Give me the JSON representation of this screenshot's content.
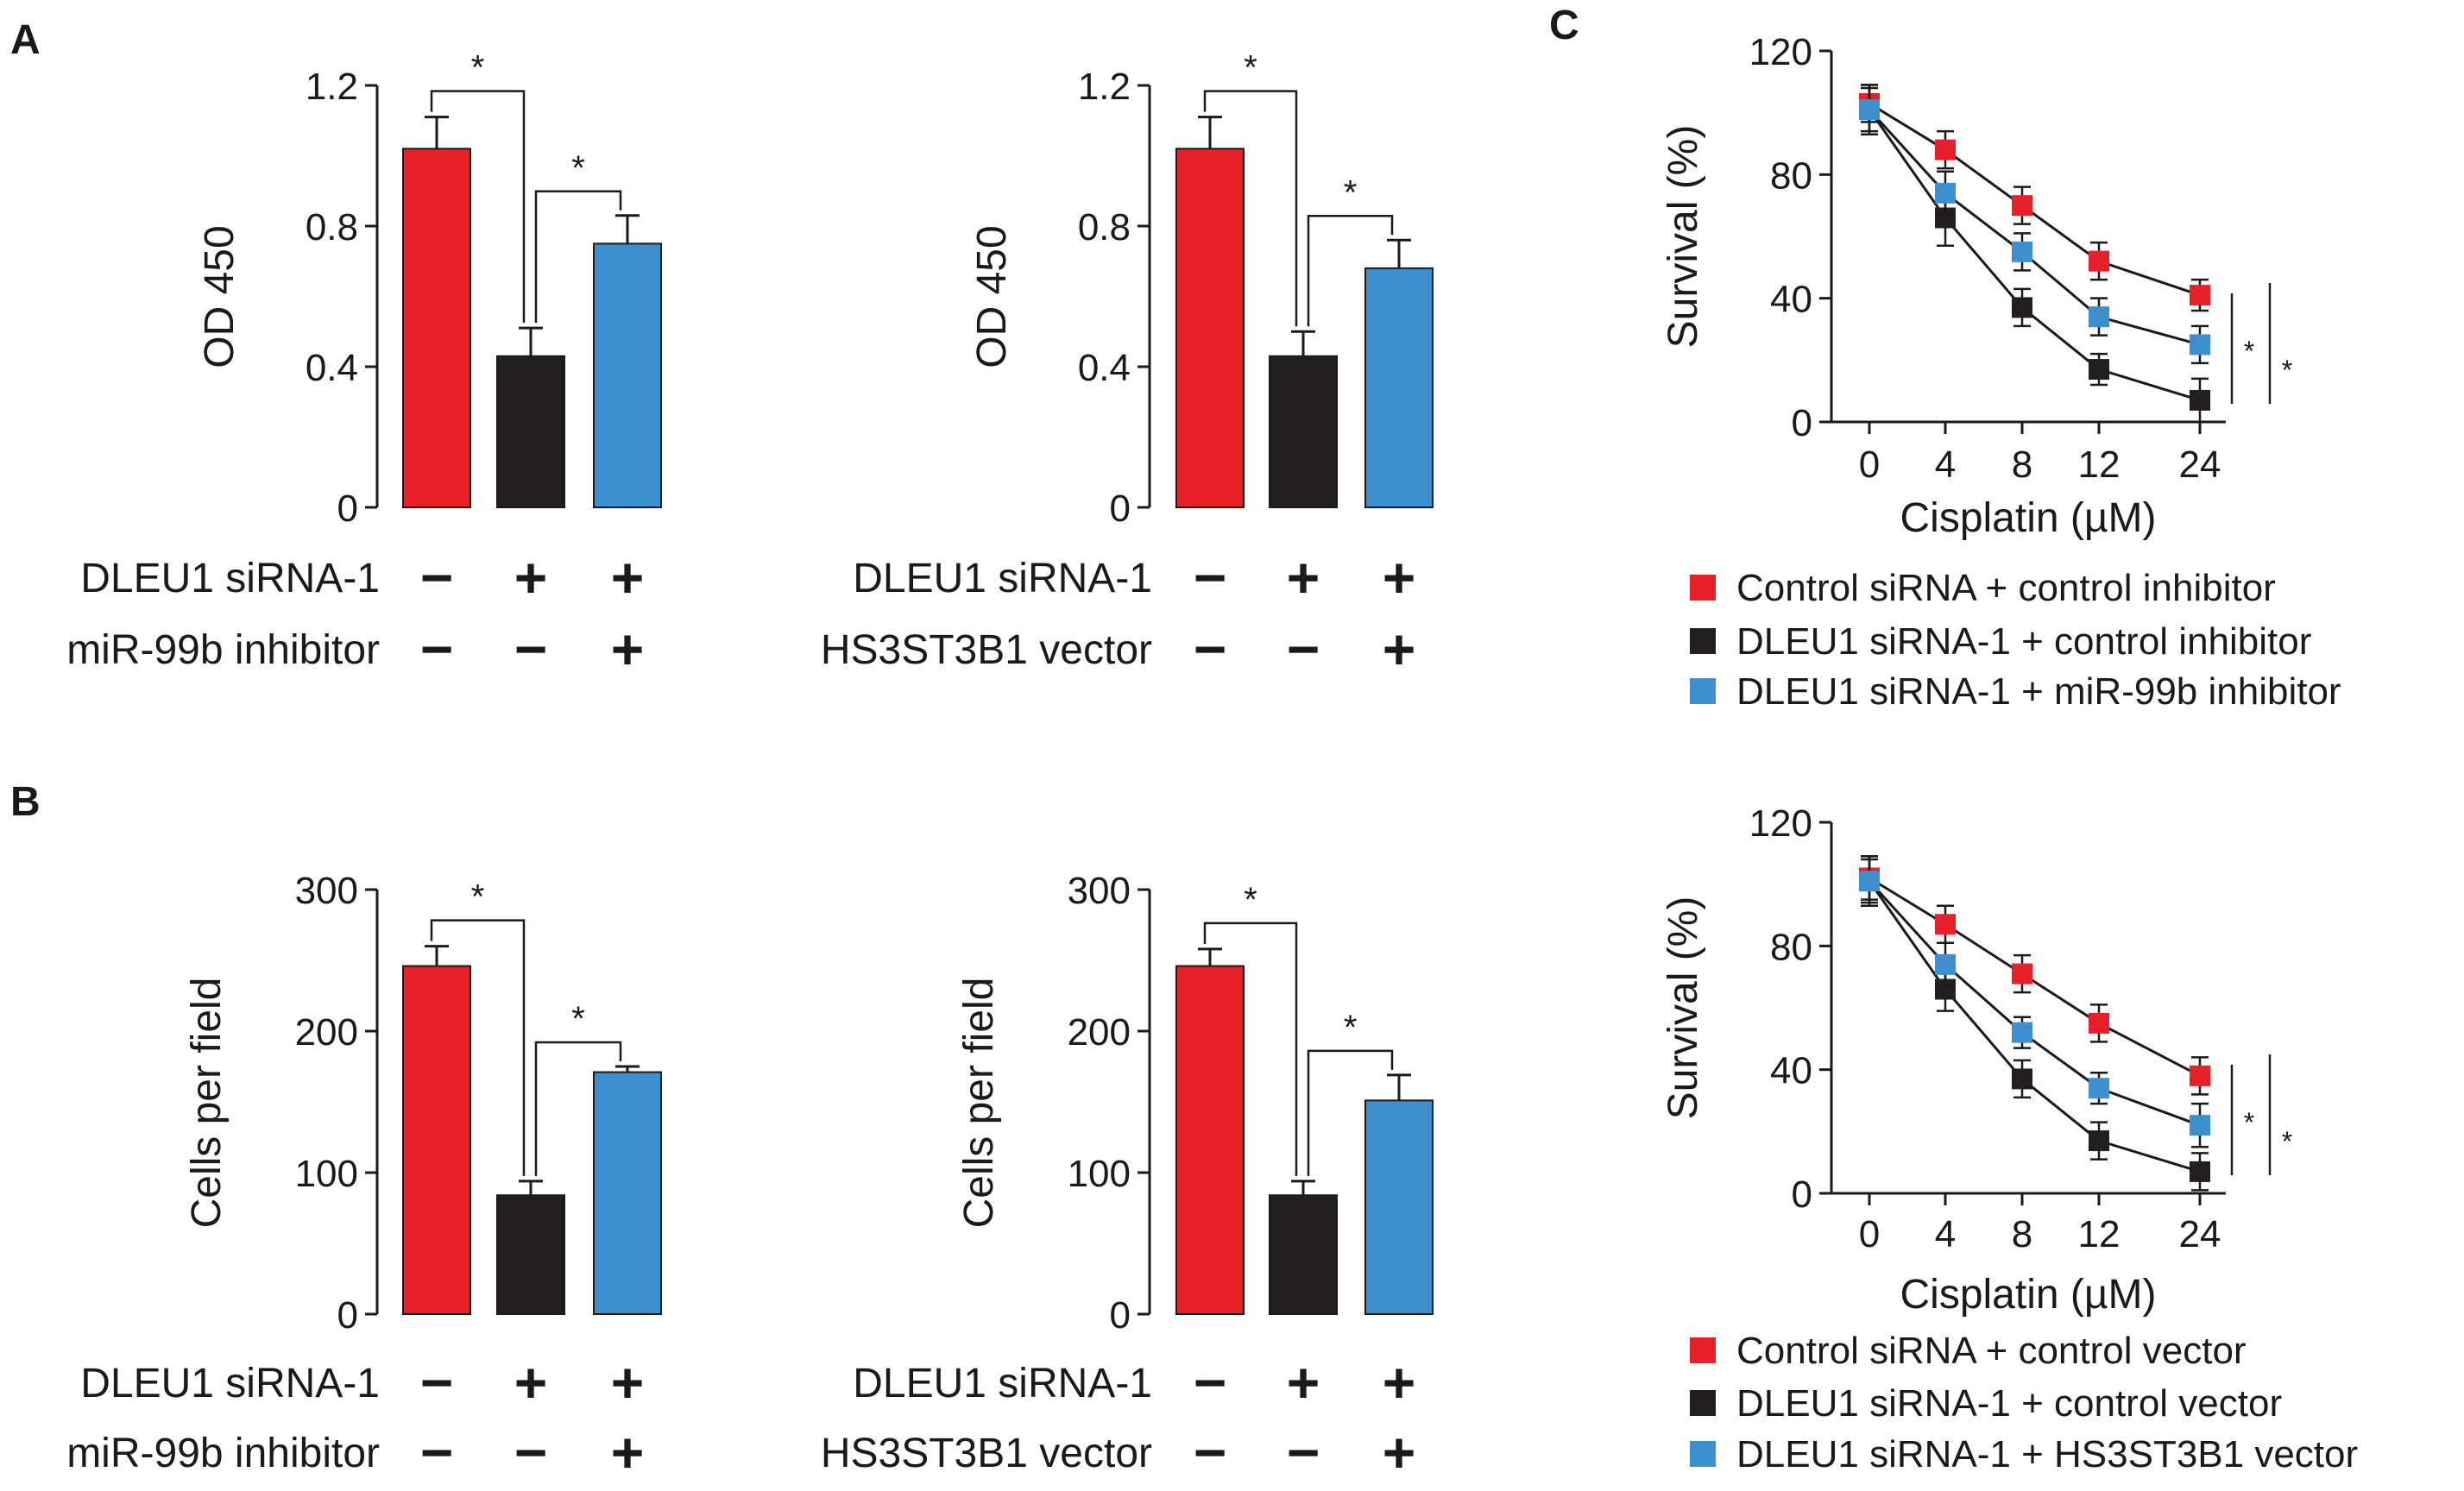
{
  "panel_labels": {
    "a": "A",
    "b": "B",
    "c": "C"
  },
  "colors": {
    "red": "#e8202a",
    "black": "#231f20",
    "blue": "#3d8fce",
    "axis": "#1a1a1a"
  },
  "row_labels": {
    "siRNA": "DLEU1 siRNA-1",
    "inhibitor": "miR-99b inhibitor",
    "vector": "HS3ST3B1 vector"
  },
  "row_signs": {
    "siRNA": [
      "−",
      "+",
      "+"
    ],
    "second": [
      "−",
      "−",
      "+"
    ]
  },
  "chart_data": [
    {
      "id": "A1",
      "type": "bar",
      "panel": "A",
      "ylabel": "OD 450",
      "ylim": [
        0,
        1.2
      ],
      "yticks": [
        "0",
        "0.4",
        "0.8",
        "1.2"
      ],
      "categories": [
        "Control siRNA + control inhibitor",
        "DLEU1 siRNA-1 + control inhibitor",
        "DLEU1 siRNA-1 + miR-99b inhibitor"
      ],
      "values": [
        1.02,
        0.43,
        0.75
      ],
      "errors": [
        0.09,
        0.08,
        0.08
      ],
      "significance": [
        {
          "between": [
            0,
            1
          ],
          "label": "*"
        },
        {
          "between": [
            1,
            2
          ],
          "label": "*"
        }
      ],
      "rows": [
        "siRNA",
        "inhibitor"
      ]
    },
    {
      "id": "A2",
      "type": "bar",
      "panel": "A",
      "ylabel": "OD 450",
      "ylim": [
        0,
        1.2
      ],
      "yticks": [
        "0",
        "0.4",
        "0.8",
        "1.2"
      ],
      "categories": [
        "Control siRNA + control vector",
        "DLEU1 siRNA-1 + control vector",
        "DLEU1 siRNA-1 + HS3ST3B1 vector"
      ],
      "values": [
        1.02,
        0.43,
        0.68
      ],
      "errors": [
        0.09,
        0.07,
        0.08
      ],
      "significance": [
        {
          "between": [
            0,
            1
          ],
          "label": "*"
        },
        {
          "between": [
            1,
            2
          ],
          "label": "*"
        }
      ],
      "rows": [
        "siRNA",
        "vector"
      ]
    },
    {
      "id": "B1",
      "type": "bar",
      "panel": "B",
      "ylabel": "Cells per field",
      "ylim": [
        0,
        300
      ],
      "yticks": [
        "0",
        "100",
        "200",
        "300"
      ],
      "categories": [
        "Control siRNA + control inhibitor",
        "DLEU1 siRNA-1 + control inhibitor",
        "DLEU1 siRNA-1 + miR-99b inhibitor"
      ],
      "values": [
        246,
        84,
        171
      ],
      "errors": [
        14,
        10,
        4
      ],
      "significance": [
        {
          "between": [
            0,
            1
          ],
          "label": "*"
        },
        {
          "between": [
            1,
            2
          ],
          "label": "*"
        }
      ],
      "rows": [
        "siRNA",
        "inhibitor"
      ]
    },
    {
      "id": "B2",
      "type": "bar",
      "panel": "B",
      "ylabel": "Cells per field",
      "ylim": [
        0,
        300
      ],
      "yticks": [
        "0",
        "100",
        "200",
        "300"
      ],
      "categories": [
        "Control siRNA + control vector",
        "DLEU1 siRNA-1 + control vector",
        "DLEU1 siRNA-1 + HS3ST3B1 vector"
      ],
      "values": [
        246,
        84,
        151
      ],
      "errors": [
        12,
        10,
        18
      ],
      "significance": [
        {
          "between": [
            0,
            1
          ],
          "label": "*"
        },
        {
          "between": [
            1,
            2
          ],
          "label": "*"
        }
      ],
      "rows": [
        "siRNA",
        "vector"
      ]
    },
    {
      "id": "C1",
      "type": "line",
      "panel": "C",
      "xlabel": "Cisplatin (µM)",
      "ylabel": "Survival (%)",
      "x": [
        "0",
        "4",
        "8",
        "12",
        "24"
      ],
      "ylim": [
        0,
        120
      ],
      "yticks": [
        "0",
        "40",
        "80",
        "120"
      ],
      "series": [
        {
          "name": "Control siRNA + control inhibitor",
          "color": "red",
          "values": [
            103,
            88,
            70,
            52,
            41
          ],
          "errors": [
            6,
            6,
            6,
            6,
            5
          ]
        },
        {
          "name": "DLEU1 siRNA-1 + control inhibitor",
          "color": "black",
          "values": [
            101,
            66,
            37,
            17,
            7
          ],
          "errors": [
            8,
            9,
            6,
            5,
            7
          ]
        },
        {
          "name": "DLEU1 siRNA-1 + miR-99b inhibitor",
          "color": "blue",
          "values": [
            101,
            74,
            55,
            34,
            25
          ],
          "errors": [
            7,
            7,
            6,
            6,
            6
          ]
        }
      ],
      "significance": [
        "*",
        "*"
      ]
    },
    {
      "id": "C2",
      "type": "line",
      "panel": "C",
      "xlabel": "Cisplatin (µM)",
      "ylabel": "Survival (%)",
      "x": [
        "0",
        "4",
        "8",
        "12",
        "24"
      ],
      "ylim": [
        0,
        120
      ],
      "yticks": [
        "0",
        "40",
        "80",
        "120"
      ],
      "series": [
        {
          "name": "Control siRNA + control vector",
          "color": "red",
          "values": [
            102,
            87,
            71,
            55,
            38
          ],
          "errors": [
            7,
            6,
            6,
            6,
            6
          ]
        },
        {
          "name": "DLEU1 siRNA-1 + control vector",
          "color": "black",
          "values": [
            101,
            66,
            37,
            17,
            7
          ],
          "errors": [
            8,
            7,
            6,
            6,
            6
          ]
        },
        {
          "name": "DLEU1 siRNA-1 + HS3ST3B1 vector",
          "color": "blue",
          "values": [
            101,
            74,
            52,
            34,
            22
          ],
          "errors": [
            7,
            7,
            5,
            5,
            7
          ]
        }
      ],
      "significance": [
        "*",
        "*"
      ]
    }
  ]
}
